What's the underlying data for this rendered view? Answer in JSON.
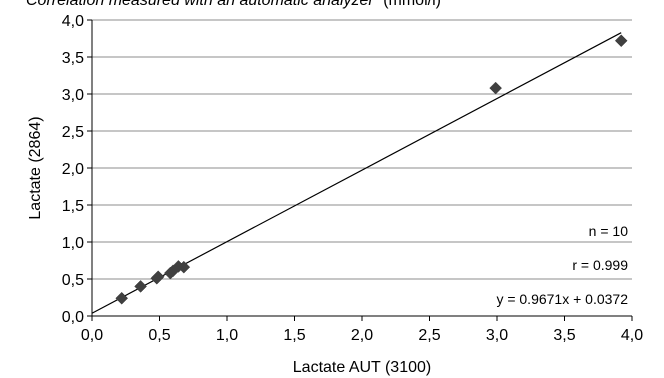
{
  "chart_data": {
    "type": "scatter",
    "title": "Correlation measured with an automatic analyzer",
    "title_suffix": "(mmol/l)",
    "xlabel": "Lactate AUT (3100)",
    "ylabel": "Lactate (2864)",
    "xlim": [
      0,
      4
    ],
    "ylim": [
      0,
      4
    ],
    "x_ticks": [
      "0,0",
      "0,5",
      "1,0",
      "1,5",
      "2,0",
      "2,5",
      "3,0",
      "3,5",
      "4,0"
    ],
    "y_ticks": [
      "0,0",
      "0,5",
      "1,0",
      "1,5",
      "2,0",
      "2,5",
      "3,0",
      "3,5",
      "4,0"
    ],
    "grid": "horizontal",
    "marker": "diamond",
    "marker_color": "#404040",
    "series": [
      {
        "points": [
          {
            "x": 0.22,
            "y": 0.24
          },
          {
            "x": 0.36,
            "y": 0.4
          },
          {
            "x": 0.48,
            "y": 0.51
          },
          {
            "x": 0.49,
            "y": 0.53
          },
          {
            "x": 0.58,
            "y": 0.58
          },
          {
            "x": 0.6,
            "y": 0.61
          },
          {
            "x": 0.64,
            "y": 0.67
          },
          {
            "x": 0.68,
            "y": 0.66
          },
          {
            "x": 2.99,
            "y": 3.08
          },
          {
            "x": 3.92,
            "y": 3.72
          }
        ]
      }
    ],
    "trendline": {
      "slope": 0.9671,
      "intercept": 0.0372,
      "x_range": [
        0,
        3.92
      ]
    },
    "annotations": [
      "n = 10",
      "r  = 0.999",
      "y = 0.9671x + 0.0372"
    ]
  }
}
